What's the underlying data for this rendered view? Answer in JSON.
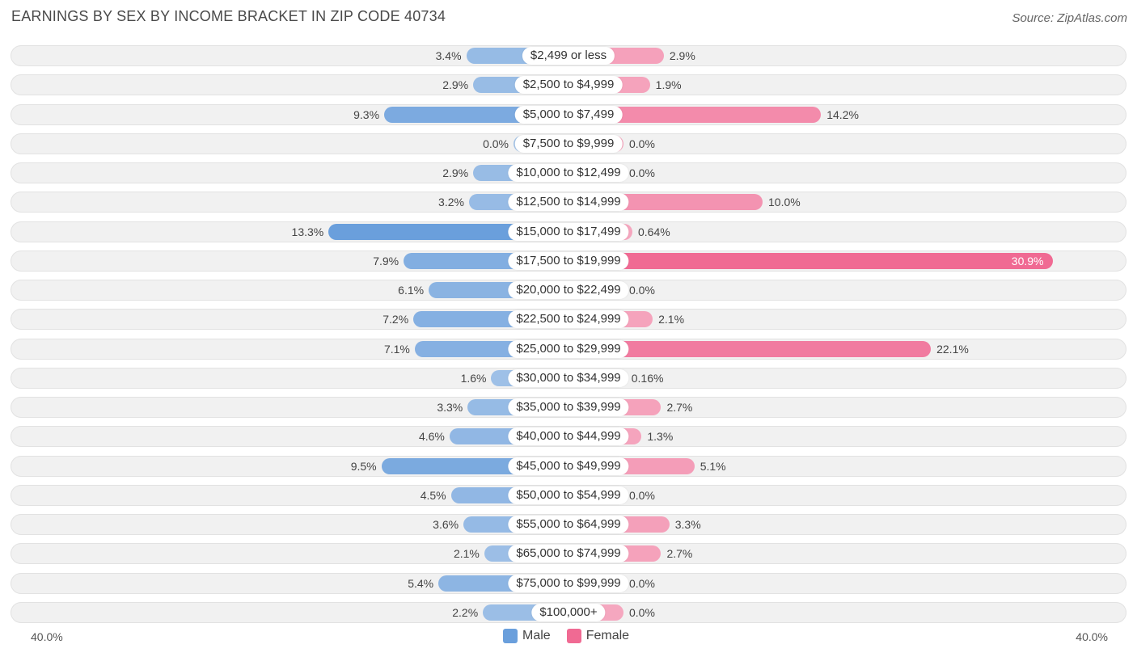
{
  "header": {
    "title": "EARNINGS BY SEX BY INCOME BRACKET IN ZIP CODE 40734",
    "source": "Source: ZipAtlas.com"
  },
  "colors": {
    "male": "#6a9fdc",
    "male_light": "#a5c4e8",
    "female": "#f06a93",
    "female_light": "#f5a7bf"
  },
  "chart_data": {
    "type": "bar",
    "orientation": "horizontal-diverging",
    "title": "EARNINGS BY SEX BY INCOME BRACKET IN ZIP CODE 40734",
    "xlim": [
      -40,
      40
    ],
    "axis_left_label": "40.0%",
    "axis_right_label": "40.0%",
    "legend": [
      "Male",
      "Female"
    ],
    "categories": [
      "$2,499 or less",
      "$2,500 to $4,999",
      "$5,000 to $7,499",
      "$7,500 to $9,999",
      "$10,000 to $12,499",
      "$12,500 to $14,999",
      "$15,000 to $17,499",
      "$17,500 to $19,999",
      "$20,000 to $22,499",
      "$22,500 to $24,999",
      "$25,000 to $29,999",
      "$30,000 to $34,999",
      "$35,000 to $39,999",
      "$40,000 to $44,999",
      "$45,000 to $49,999",
      "$50,000 to $54,999",
      "$55,000 to $64,999",
      "$65,000 to $74,999",
      "$75,000 to $99,999",
      "$100,000+"
    ],
    "series": [
      {
        "name": "Male",
        "values": [
          3.4,
          2.9,
          9.3,
          0.0,
          2.9,
          3.2,
          13.3,
          7.9,
          6.1,
          7.2,
          7.1,
          1.6,
          3.3,
          4.6,
          9.5,
          4.5,
          3.6,
          2.1,
          5.4,
          2.2
        ],
        "labels": [
          "3.4%",
          "2.9%",
          "9.3%",
          "0.0%",
          "2.9%",
          "3.2%",
          "13.3%",
          "7.9%",
          "6.1%",
          "7.2%",
          "7.1%",
          "1.6%",
          "3.3%",
          "4.6%",
          "9.5%",
          "4.5%",
          "3.6%",
          "2.1%",
          "5.4%",
          "2.2%"
        ]
      },
      {
        "name": "Female",
        "values": [
          2.9,
          1.9,
          14.2,
          0.0,
          0.0,
          10.0,
          0.64,
          30.9,
          0.0,
          2.1,
          22.1,
          0.16,
          2.7,
          1.3,
          5.1,
          0.0,
          3.3,
          2.7,
          0.0,
          0.0
        ],
        "labels": [
          "2.9%",
          "1.9%",
          "14.2%",
          "0.0%",
          "0.0%",
          "10.0%",
          "0.64%",
          "30.9%",
          "0.0%",
          "2.1%",
          "22.1%",
          "0.16%",
          "2.7%",
          "1.3%",
          "5.1%",
          "0.0%",
          "3.3%",
          "2.7%",
          "0.0%",
          "0.0%"
        ]
      }
    ]
  }
}
